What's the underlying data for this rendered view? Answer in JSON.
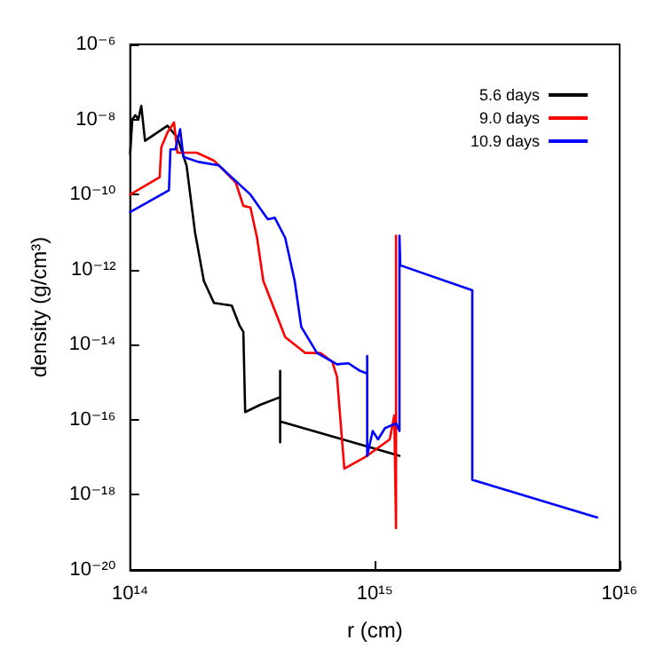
{
  "chart_data": {
    "type": "line",
    "xlabel": "r (cm)",
    "ylabel": "density (g/cm³)",
    "log": "xy",
    "xlim": [
      100000000000000.0,
      1e+16
    ],
    "ylim": [
      1e-20,
      1e-06
    ],
    "xticks": [
      {
        "value": 100000000000000.0,
        "label": "10¹⁴"
      },
      {
        "value": 1000000000000000.0,
        "label": "10¹⁵"
      },
      {
        "value": 1e+16,
        "label": "10¹⁶"
      }
    ],
    "yticks": [
      {
        "value": 1e-20,
        "label": "10⁻²⁰"
      },
      {
        "value": 1e-18,
        "label": "10⁻¹⁸"
      },
      {
        "value": 1e-16,
        "label": "10⁻¹⁶"
      },
      {
        "value": 1e-14,
        "label": "10⁻¹⁴"
      },
      {
        "value": 1e-12,
        "label": "10⁻¹²"
      },
      {
        "value": 1e-10,
        "label": "10⁻¹⁰"
      },
      {
        "value": 1e-08,
        "label": "10⁻⁸"
      },
      {
        "value": 1e-06,
        "label": "10⁻⁶"
      }
    ],
    "grid": false,
    "legend": "top right",
    "marker": "none",
    "line_style": "solid",
    "series": [
      {
        "name": "5.6 days",
        "color": "#000000",
        "x": [
          100000000000000.0,
          102000000000000.0,
          105000000000000.0,
          108000000000000.0,
          111000000000000.0,
          115000000000000.0,
          142000000000000.0,
          156000000000000.0,
          170000000000000.0,
          184000000000000.0,
          200000000000000.0,
          220000000000000.0,
          260000000000000.0,
          280000000000000.0,
          290000000000000.0,
          295000000000000.0,
          340000000000000.0,
          410000000000000.0,
          410000000000000.0,
          410000000000000.0,
          410000000000000.0,
          1260000000000000.0
        ],
        "values": [
          1.2e-09,
          1e-08,
          1.3e-08,
          1e-08,
          2.3e-08,
          2.7e-09,
          6.8e-09,
          3.3e-09,
          5.9e-10,
          1e-11,
          5e-13,
          1.3e-13,
          1.1e-13,
          3.2e-14,
          2.2e-14,
          1.6e-16,
          2.5e-16,
          4e-16,
          2e-15,
          2.5e-17,
          9e-17,
          1.1e-17
        ]
      },
      {
        "name": "9.0 days",
        "color": "#ff0000",
        "x": [
          100000000000000.0,
          132000000000000.0,
          134000000000000.0,
          142000000000000.0,
          151000000000000.0,
          156000000000000.0,
          187000000000000.0,
          220000000000000.0,
          270000000000000.0,
          290000000000000.0,
          310000000000000.0,
          330000000000000.0,
          350000000000000.0,
          430000000000000.0,
          520000000000000.0,
          600000000000000.0,
          670000000000000.0,
          700000000000000.0,
          750000000000000.0,
          910000000000000.0,
          1150000000000000.0,
          1200000000000000.0,
          1220000000000000.0,
          1220000000000000.0,
          1220000000000000.0
        ],
        "values": [
          1e-10,
          2.9e-10,
          1.8e-09,
          4.5e-09,
          8.3e-09,
          1.3e-09,
          1.3e-09,
          8e-10,
          2.1e-10,
          5e-11,
          4.5e-11,
          7e-12,
          5e-13,
          1.6e-14,
          6e-15,
          6e-15,
          3.5e-15,
          1.4e-15,
          5e-18,
          1e-17,
          3e-17,
          1.3e-16,
          1.3e-19,
          1e-15,
          8e-12
        ]
      },
      {
        "name": "10.9 days",
        "color": "#0000ff",
        "x": [
          100000000000000.0,
          144000000000000.0,
          146000000000000.0,
          153000000000000.0,
          160000000000000.0,
          165000000000000.0,
          190000000000000.0,
          230000000000000.0,
          310000000000000.0,
          365000000000000.0,
          390000000000000.0,
          430000000000000.0,
          470000000000000.0,
          500000000000000.0,
          580000000000000.0,
          700000000000000.0,
          780000000000000.0,
          870000000000000.0,
          930000000000000.0,
          930000000000000.0,
          930000000000000.0,
          980000000000000.0,
          1030000000000000.0,
          1100000000000000.0,
          1220000000000000.0,
          1260000000000000.0,
          1260000000000000.0,
          1270000000000000.0,
          2500000000000000.0,
          2500000000000000.0,
          8100000000000000.0
        ],
        "values": [
          3.4e-11,
          1.3e-10,
          1.6e-09,
          1.6e-09,
          5.5e-09,
          1e-09,
          7.4e-10,
          6e-10,
          1e-10,
          2.2e-11,
          2.4e-11,
          7e-12,
          5e-13,
          3e-14,
          6e-15,
          3e-15,
          3.2e-15,
          2e-15,
          1.7e-15,
          5e-15,
          1.1e-17,
          5e-17,
          3e-17,
          6e-17,
          8e-17,
          5e-17,
          8e-12,
          1.3e-12,
          2.8e-13,
          2.5e-18,
          2.5e-19
        ]
      }
    ]
  }
}
